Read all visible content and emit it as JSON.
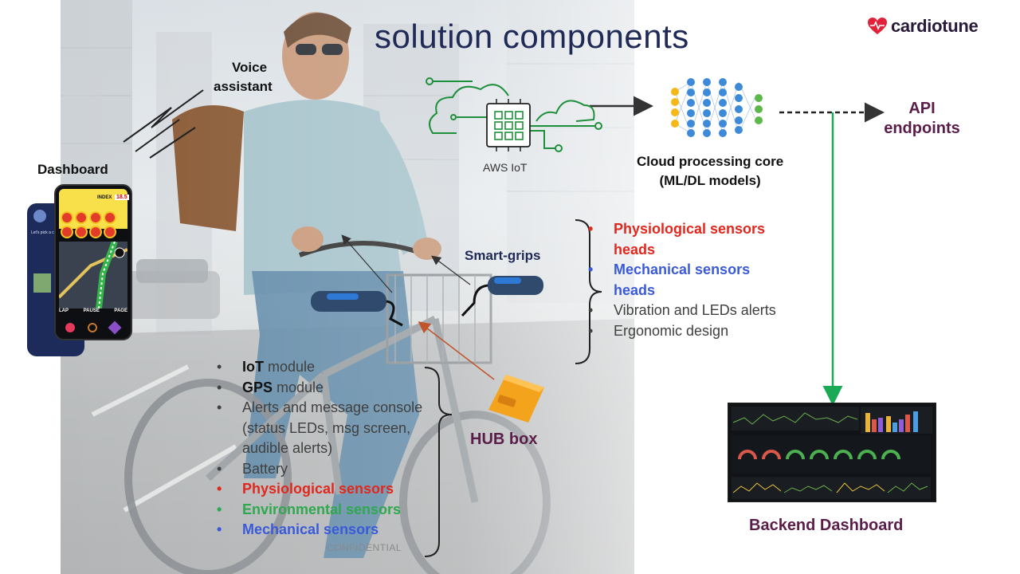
{
  "title": "solution components",
  "logo": {
    "text": "cardiotune",
    "heart_color": "#e0233a"
  },
  "labels": {
    "voice_assistant_line1": "Voice",
    "voice_assistant_line2": "assistant",
    "dashboard": "Dashboard",
    "aws_iot": "AWS IoT",
    "cloud_core_line1": "Cloud processing core",
    "cloud_core_line2": "(ML/DL models)",
    "api_line1": "API",
    "api_line2": "endpoints",
    "smart_grips": "Smart-grips",
    "hub_box": "HUB box",
    "backend_dashboard": "Backend Dashboard",
    "confidential": "CONFIDENTIAL"
  },
  "smart_grips_features": [
    {
      "text": "Physiological sensors heads",
      "color": "red"
    },
    {
      "text": "Mechanical sensors heads",
      "color": "blue"
    },
    {
      "text": "Vibration and LEDs alerts",
      "color": "default"
    },
    {
      "text": "Ergonomic design",
      "color": "default"
    }
  ],
  "hub_features": {
    "iot_bold": "IoT",
    "iot_rest": " module",
    "gps_bold": "GPS",
    "gps_rest": " module",
    "alerts": "Alerts and message console (status LEDs, msg screen, audible alerts)",
    "battery": "Battery",
    "physiological": "Physiological sensors",
    "environmental": "Environmental sensors",
    "mechanical": "Mechanical sensors"
  },
  "phone_ui": {
    "index_label": "INDEX",
    "index_value": "18.5",
    "buttons": [
      "LAP",
      "PAUSE",
      "PAGE"
    ],
    "chat_text": "Let's pick a c"
  },
  "colors": {
    "title": "#1f2a56",
    "purple_label": "#5a1d49",
    "red": "#e0281e",
    "blue": "#3b5ad8",
    "green": "#2fa84f",
    "connector_green": "#1aaa55"
  }
}
